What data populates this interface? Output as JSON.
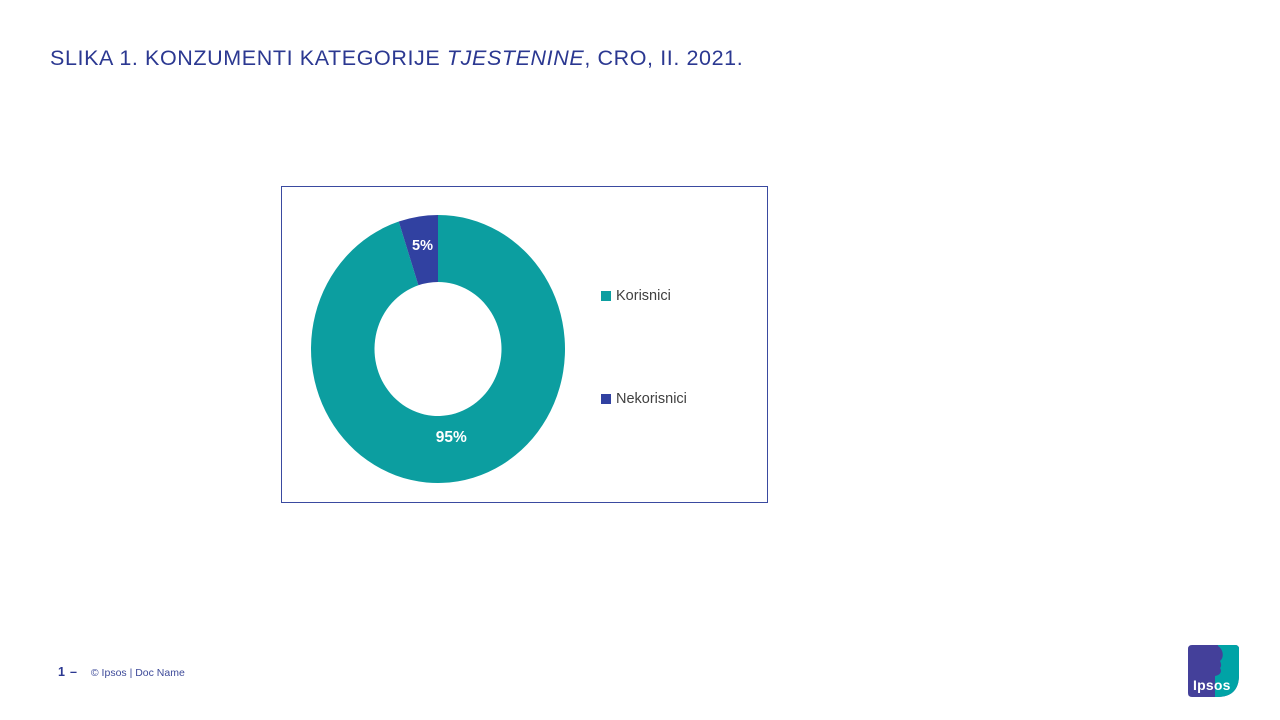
{
  "slide": {
    "title": {
      "prefix": "SLIKA 1. KONZUMENTI KATEGORIJE ",
      "emphasis": "TJESTENINE",
      "suffix": ", CRO, II. 2021."
    },
    "footer": {
      "page_number": "1",
      "separator": "–",
      "credit": "© Ipsos | Doc Name"
    },
    "logo_text": "Ipsos"
  },
  "chart_data": {
    "type": "pie",
    "subtype": "donut",
    "title": "",
    "categories": [
      "Korisnici",
      "Nekorisnici"
    ],
    "values": [
      95,
      5
    ],
    "data_labels": [
      "95%",
      "5%"
    ],
    "colors": [
      "#0C9EA0",
      "#3141A1"
    ],
    "start_angle_deg": 0,
    "direction": "clockwise",
    "donut_hole_ratio": 0.5,
    "legend_position": "right",
    "grid": false
  },
  "theme": {
    "title_color": "#2B3891",
    "chart_border_color": "#3A4AA0",
    "legend_text_color": "#404040",
    "logo_blue": "#44409A",
    "logo_teal": "#00A3A6"
  }
}
